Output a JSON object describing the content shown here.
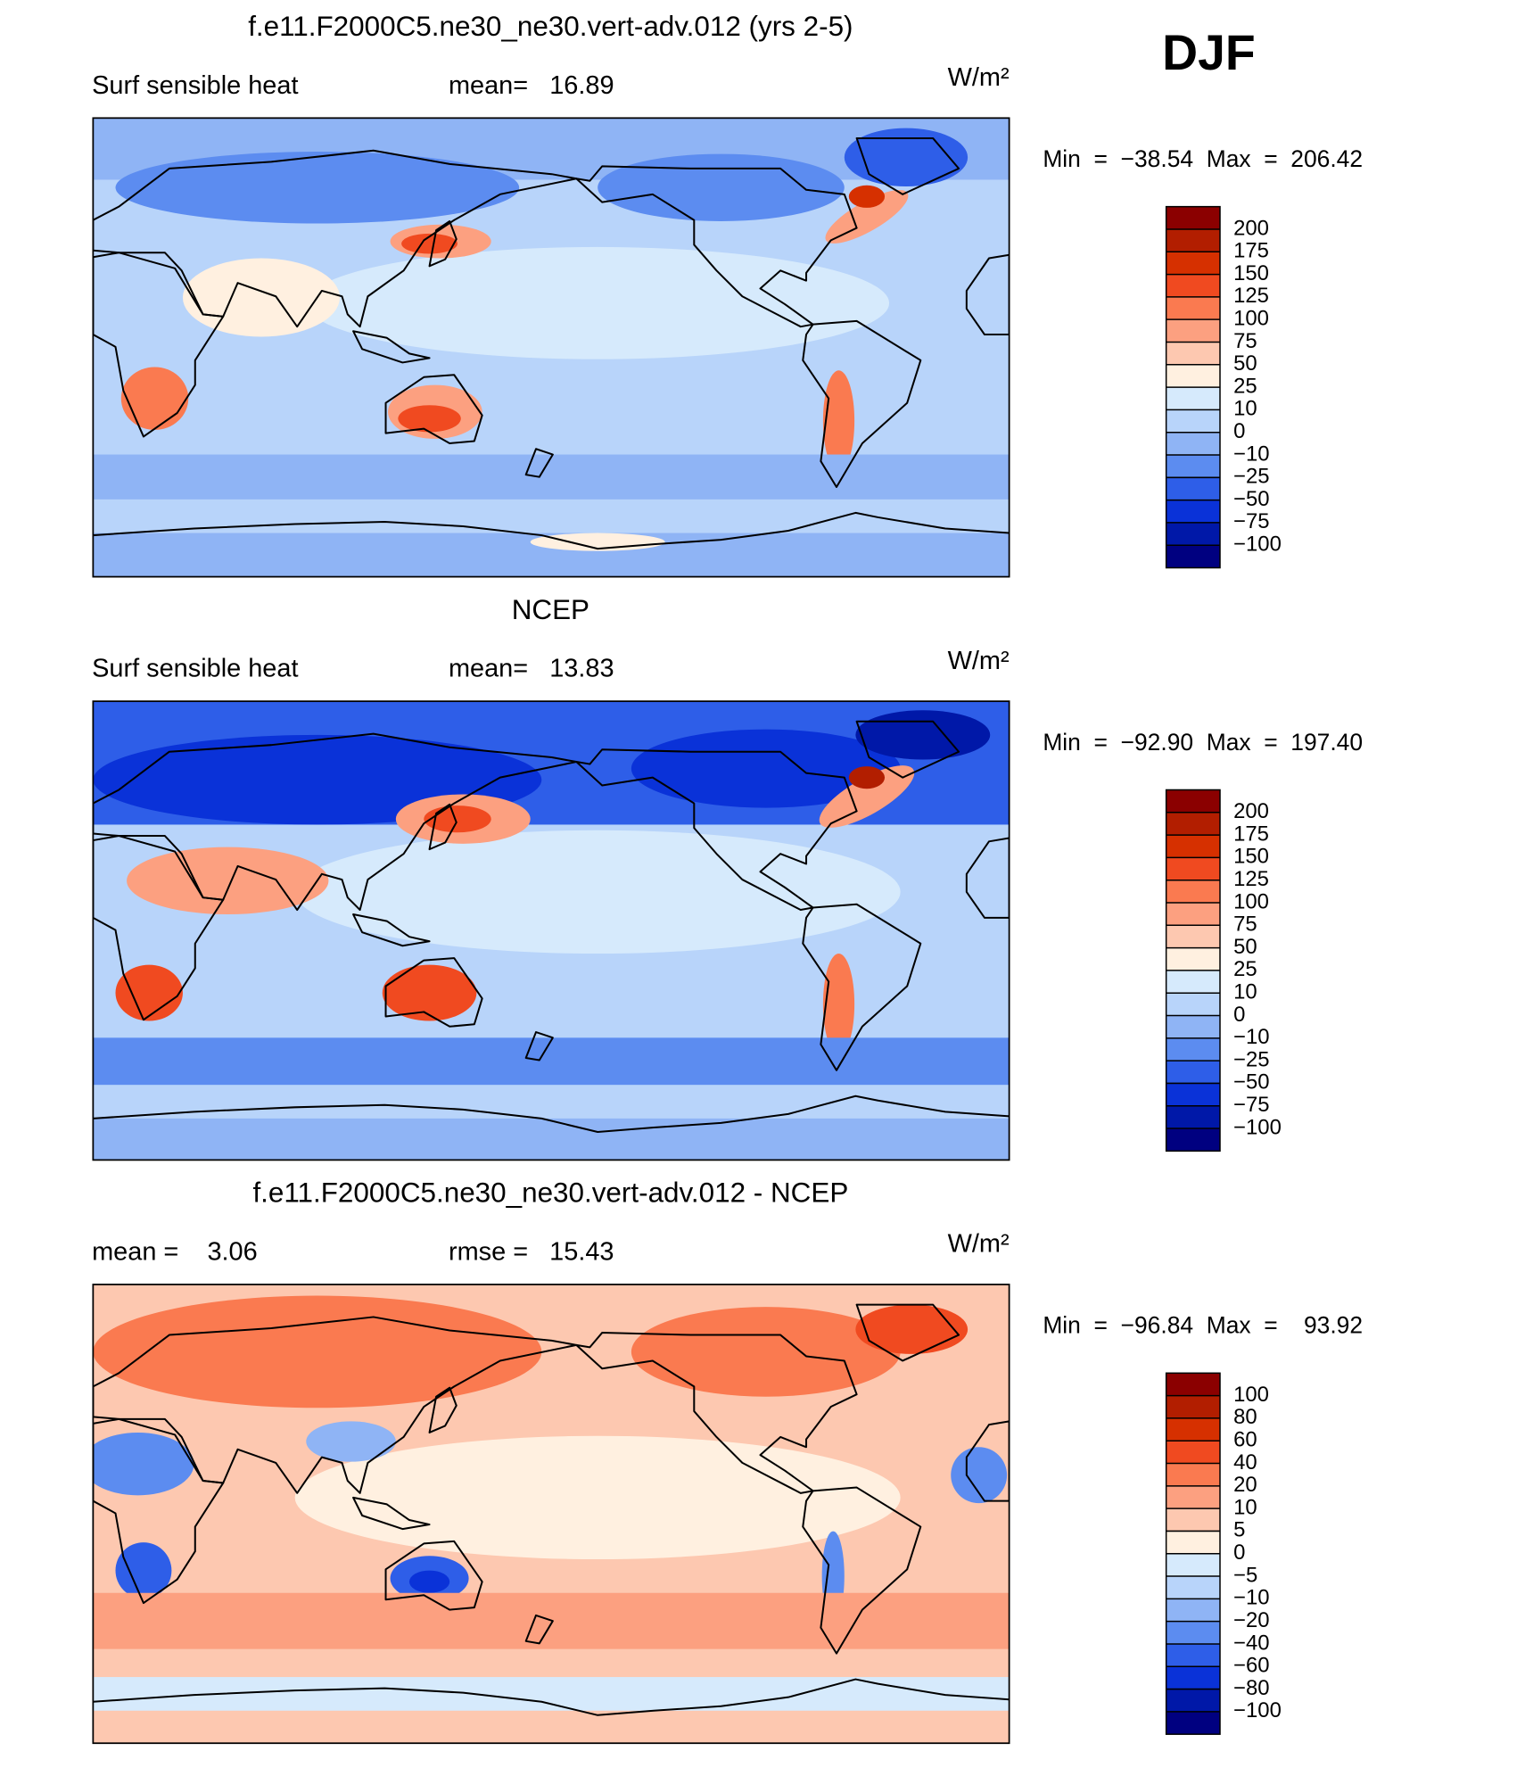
{
  "header": {
    "season": "DJF"
  },
  "chart_data": [
    {
      "type": "contour",
      "title": "f.e11.F2000C5.ne30_ne30.vert-adv.012 (yrs 2-5)",
      "left_note": "Surf sensible heat",
      "center_note": "mean=   16.89",
      "units": "W/m²",
      "range_note": "Min  =  −38.54  Max  =  206.42",
      "colorbar": {
        "levels": [
          200,
          175,
          150,
          125,
          100,
          75,
          50,
          25,
          10,
          0,
          {
            "value": -10,
            "label": "−10"
          },
          {
            "value": -25,
            "label": "−25"
          },
          {
            "value": -50,
            "label": "−50"
          },
          {
            "value": -75,
            "label": "−75"
          },
          {
            "value": -100,
            "label": "−100"
          }
        ],
        "colors": [
          "#8b0000",
          "#b21e00",
          "#d63000",
          "#f04a20",
          "#fa7a50",
          "#fca080",
          "#fdc8b0",
          "#fff0e0",
          "#d6eafc",
          "#b8d4fa",
          "#8fb4f5",
          "#5c8cf0",
          "#2e5ee8",
          "#0a32d8",
          "#0018a8",
          "#000080"
        ]
      }
    },
    {
      "type": "contour",
      "title": "NCEP",
      "left_note": "Surf sensible heat",
      "center_note": "mean=   13.83",
      "units": "W/m²",
      "range_note": "Min  =  −92.90  Max  =  197.40",
      "colorbar": {
        "levels": [
          200,
          175,
          150,
          125,
          100,
          75,
          50,
          25,
          10,
          0,
          {
            "value": -10,
            "label": "−10"
          },
          {
            "value": -25,
            "label": "−25"
          },
          {
            "value": -50,
            "label": "−50"
          },
          {
            "value": -75,
            "label": "−75"
          },
          {
            "value": -100,
            "label": "−100"
          }
        ],
        "colors": [
          "#8b0000",
          "#b21e00",
          "#d63000",
          "#f04a20",
          "#fa7a50",
          "#fca080",
          "#fdc8b0",
          "#fff0e0",
          "#d6eafc",
          "#b8d4fa",
          "#8fb4f5",
          "#5c8cf0",
          "#2e5ee8",
          "#0a32d8",
          "#0018a8",
          "#000080"
        ]
      }
    },
    {
      "type": "contour",
      "title": "f.e11.F2000C5.ne30_ne30.vert-adv.012 - NCEP",
      "left_note": "mean =    3.06",
      "center_note": "rmse =   15.43",
      "units": "W/m²",
      "range_note": "Min  =  −96.84  Max  =    93.92",
      "colorbar": {
        "levels": [
          100,
          80,
          60,
          40,
          20,
          10,
          5,
          0,
          {
            "value": -5,
            "label": "−5"
          },
          {
            "value": -10,
            "label": "−10"
          },
          {
            "value": -20,
            "label": "−20"
          },
          {
            "value": -40,
            "label": "−40"
          },
          {
            "value": -60,
            "label": "−60"
          },
          {
            "value": -80,
            "label": "−80"
          },
          {
            "value": -100,
            "label": "−100"
          }
        ],
        "colors": [
          "#8b0000",
          "#b21e00",
          "#d63000",
          "#f04a20",
          "#fa7a50",
          "#fca080",
          "#fdc8b0",
          "#fff0e0",
          "#d6eafc",
          "#b8d4fa",
          "#8fb4f5",
          "#5c8cf0",
          "#2e5ee8",
          "#0a32d8",
          "#0018a8",
          "#000080"
        ]
      }
    }
  ]
}
